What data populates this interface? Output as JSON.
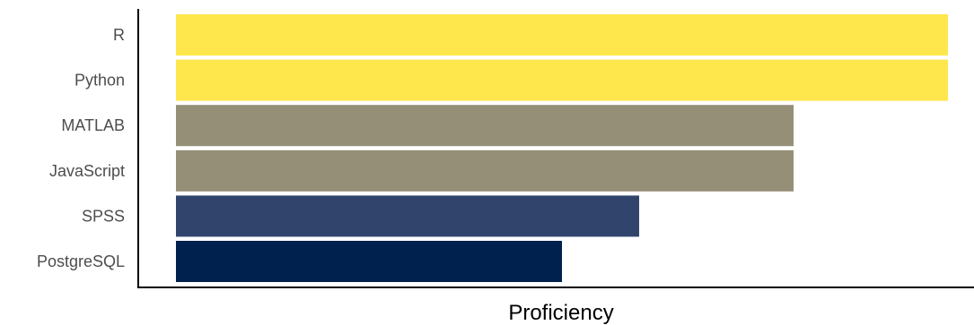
{
  "chart_data": {
    "type": "bar",
    "orientation": "horizontal",
    "title": "",
    "xlabel": "Proficiency",
    "ylabel": "",
    "categories": [
      "R",
      "Python",
      "MATLAB",
      "JavaScript",
      "SPSS",
      "PostgreSQL"
    ],
    "values": [
      5,
      5,
      4,
      4,
      3,
      2.5
    ],
    "colors": [
      "#FDE74C",
      "#FDE74C",
      "#958F78",
      "#958F78",
      "#31446B",
      "#00204D"
    ],
    "xlim": [
      0,
      5
    ],
    "x_ticks_shown": false,
    "grid": false,
    "legend": "none"
  }
}
